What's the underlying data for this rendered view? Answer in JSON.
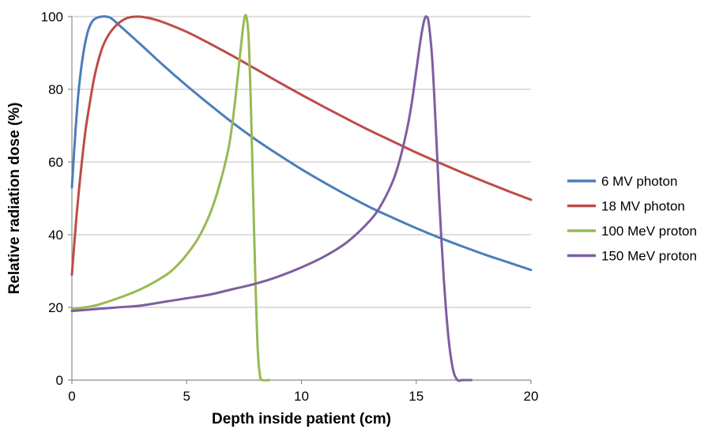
{
  "chart_data": {
    "type": "line",
    "title": "",
    "xlabel": "Depth inside patient (cm)",
    "ylabel": "Relative radiation dose (%)",
    "xlim": [
      0,
      20
    ],
    "ylim": [
      0,
      100
    ],
    "x_ticks": [
      0,
      5,
      10,
      15,
      20
    ],
    "y_ticks": [
      0,
      20,
      40,
      60,
      80,
      100
    ],
    "grid": "horizontal",
    "legend_position": "right",
    "series": [
      {
        "name": "6 MV photon",
        "color": "#4a7ebb",
        "x": [
          0,
          0.15,
          0.3,
          0.5,
          0.7,
          0.9,
          1.1,
          1.3,
          1.5,
          1.7,
          2,
          3,
          4,
          5,
          6,
          7,
          8,
          9,
          10,
          11,
          12,
          13,
          14,
          15,
          16,
          17,
          18,
          19,
          20
        ],
        "y": [
          53,
          68,
          80,
          90,
          96,
          98.8,
          99.7,
          100,
          100,
          99.6,
          98,
          92.3,
          86.5,
          81,
          75.8,
          70.8,
          66.2,
          62,
          58,
          54.3,
          50.8,
          47.5,
          44.6,
          41.8,
          39.2,
          36.8,
          34.5,
          32.4,
          30.3
        ]
      },
      {
        "name": "18 MV photon",
        "color": "#be4b48",
        "x": [
          0,
          0.2,
          0.4,
          0.6,
          0.8,
          1,
          1.3,
          1.6,
          2,
          2.4,
          2.8,
          3.1,
          3.5,
          4,
          5,
          6,
          7,
          8,
          9,
          10,
          11,
          12,
          13,
          14,
          15,
          16,
          17,
          18,
          19,
          20
        ],
        "y": [
          29,
          45,
          58,
          69,
          77,
          84,
          91,
          95,
          98,
          99.6,
          100,
          99.9,
          99.4,
          98.4,
          95.8,
          92.6,
          89.2,
          85.6,
          82,
          78.5,
          75.1,
          71.8,
          68.6,
          65.6,
          62.6,
          59.8,
          57.1,
          54.5,
          52,
          49.6
        ]
      },
      {
        "name": "100 MeV proton",
        "color": "#98b954",
        "x": [
          0,
          1,
          2,
          3,
          4,
          4.5,
          5,
          5.5,
          6,
          6.4,
          6.8,
          7,
          7.2,
          7.35,
          7.5,
          7.6,
          7.7,
          7.8,
          7.9,
          8.0,
          8.1,
          8.2,
          8.3,
          8.6
        ],
        "y": [
          19.5,
          20.5,
          22.5,
          25,
          28.5,
          31,
          34.5,
          39,
          45.5,
          53,
          63,
          71,
          82,
          91,
          99,
          100,
          94,
          75,
          50,
          26,
          8,
          1,
          0,
          0
        ]
      },
      {
        "name": "150 MeV proton",
        "color": "#7d5fa0",
        "x": [
          0,
          1,
          2,
          3,
          4,
          5,
          6,
          7,
          8,
          9,
          10,
          11,
          12,
          13,
          13.5,
          14,
          14.3,
          14.6,
          14.8,
          15,
          15.2,
          15.35,
          15.45,
          15.55,
          15.7,
          15.85,
          16,
          16.2,
          16.4,
          16.6,
          16.8,
          17,
          17.4
        ],
        "y": [
          19,
          19.5,
          20,
          20.5,
          21.5,
          22.5,
          23.5,
          25,
          26.5,
          28.5,
          31,
          34,
          38,
          44,
          48.5,
          55,
          61,
          69,
          76,
          85,
          94,
          99,
          100,
          98,
          88,
          70,
          50,
          28,
          12,
          3,
          0,
          0,
          0
        ]
      }
    ]
  }
}
